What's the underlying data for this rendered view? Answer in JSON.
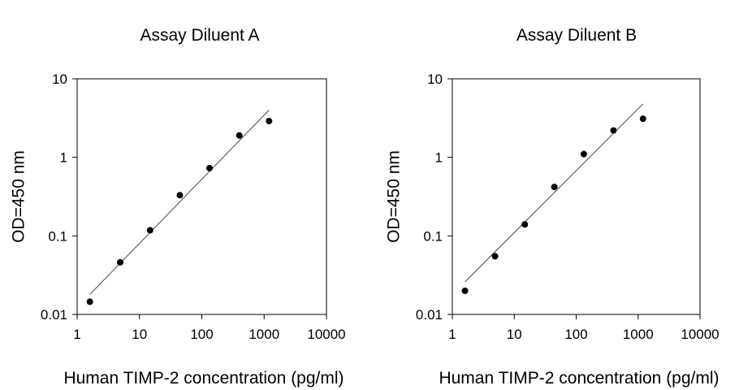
{
  "chart_data": [
    {
      "type": "scatter",
      "title": "Assay Diluent A",
      "xlabel": "Human TIMP-2 concentration (pg/ml)",
      "ylabel": "OD=450 nm",
      "xscale": "log",
      "yscale": "log",
      "xlim": [
        1,
        10000
      ],
      "ylim": [
        0.01,
        10
      ],
      "xticks": [
        1,
        10,
        100,
        1000,
        10000
      ],
      "xtick_labels": [
        "1",
        "10",
        "100",
        "1000",
        "10000"
      ],
      "yticks": [
        0.01,
        0.1,
        1,
        10
      ],
      "ytick_labels": [
        "0.01",
        "0.1",
        "1",
        "10"
      ],
      "grid": false,
      "points": [
        {
          "x": 1.6,
          "y": 0.0145
        },
        {
          "x": 4.9,
          "y": 0.046
        },
        {
          "x": 14.8,
          "y": 0.118
        },
        {
          "x": 44.4,
          "y": 0.33
        },
        {
          "x": 133,
          "y": 0.73
        },
        {
          "x": 400,
          "y": 1.9
        },
        {
          "x": 1200,
          "y": 2.9
        }
      ],
      "fit_line": [
        {
          "x": 1.6,
          "y": 0.018
        },
        {
          "x": 1200,
          "y": 4.0
        }
      ]
    },
    {
      "type": "scatter",
      "title": "Assay Diluent B",
      "xlabel": "Human TIMP-2 concentration (pg/ml)",
      "ylabel": "OD=450 nm",
      "xscale": "log",
      "yscale": "log",
      "xlim": [
        1,
        10000
      ],
      "ylim": [
        0.01,
        10
      ],
      "xticks": [
        1,
        10,
        100,
        1000,
        10000
      ],
      "xtick_labels": [
        "1",
        "10",
        "100",
        "1000",
        "10000"
      ],
      "yticks": [
        0.01,
        0.1,
        1,
        10
      ],
      "ytick_labels": [
        "0.01",
        "0.1",
        "1",
        "10"
      ],
      "grid": false,
      "points": [
        {
          "x": 1.6,
          "y": 0.02
        },
        {
          "x": 4.9,
          "y": 0.055
        },
        {
          "x": 14.8,
          "y": 0.14
        },
        {
          "x": 44.4,
          "y": 0.42
        },
        {
          "x": 133,
          "y": 1.1
        },
        {
          "x": 400,
          "y": 2.2
        },
        {
          "x": 1200,
          "y": 3.1
        }
      ],
      "fit_line": [
        {
          "x": 1.6,
          "y": 0.026
        },
        {
          "x": 1200,
          "y": 4.8
        }
      ]
    }
  ]
}
